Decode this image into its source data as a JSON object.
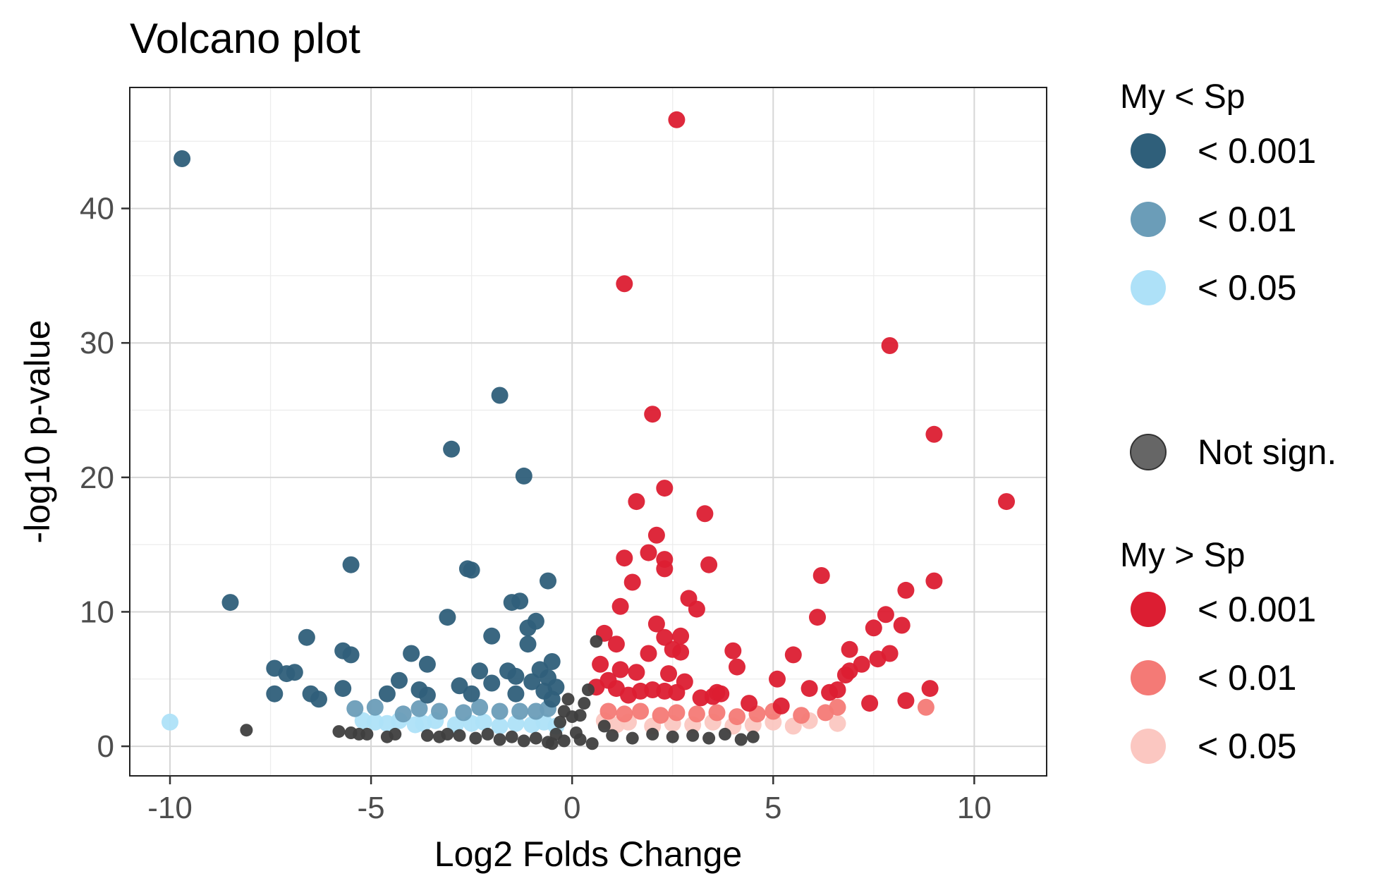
{
  "chart_data": {
    "type": "scatter",
    "title": "Volcano plot",
    "xlabel": "Log2 Folds Change",
    "ylabel": "-log10 p-value",
    "xlim": [
      -11,
      11.8
    ],
    "ylim": [
      -2.2,
      49
    ],
    "x_ticks": [
      -10,
      -5,
      0,
      5,
      10
    ],
    "y_ticks": [
      0,
      10,
      20,
      30,
      40
    ],
    "grid": true,
    "legend_position": "right",
    "colors": {
      "down_001": "#2f5f7a",
      "down_01": "#6b9db8",
      "down_05": "#aee1f8",
      "not_sign": "#3f3f3f",
      "up_001": "#dc1e32",
      "up_01": "#f47a76",
      "up_05": "#fbc7c1"
    },
    "legend": {
      "group1_title": "My < Sp",
      "group1_items": [
        {
          "label": "< 0.001",
          "color": "#2f5f7a"
        },
        {
          "label": "< 0.01",
          "color": "#6b9db8"
        },
        {
          "label": "< 0.05",
          "color": "#aee1f8"
        }
      ],
      "not_sign_label": "Not sign.",
      "group2_title": "My > Sp",
      "group2_items": [
        {
          "label": "< 0.001",
          "color": "#dc1e32"
        },
        {
          "label": "< 0.01",
          "color": "#f47a76"
        },
        {
          "label": "< 0.05",
          "color": "#fbc7c1"
        }
      ]
    },
    "series": [
      {
        "key": "down_001",
        "points": [
          [
            -9.7,
            43.7
          ],
          [
            -8.5,
            10.7
          ],
          [
            -7.4,
            5.8
          ],
          [
            -7.1,
            5.4
          ],
          [
            -6.9,
            5.5
          ],
          [
            -7.4,
            3.9
          ],
          [
            -6.6,
            8.1
          ],
          [
            -6.5,
            3.9
          ],
          [
            -6.3,
            3.5
          ],
          [
            -5.7,
            7.1
          ],
          [
            -5.5,
            6.8
          ],
          [
            -5.7,
            4.3
          ],
          [
            -5.5,
            13.5
          ],
          [
            -4.6,
            3.9
          ],
          [
            -4.3,
            4.9
          ],
          [
            -4.0,
            6.9
          ],
          [
            -3.8,
            4.2
          ],
          [
            -3.6,
            6.1
          ],
          [
            -3.6,
            3.8
          ],
          [
            -3.0,
            22.1
          ],
          [
            -3.1,
            9.6
          ],
          [
            -2.6,
            13.2
          ],
          [
            -2.5,
            13.1
          ],
          [
            -2.8,
            4.5
          ],
          [
            -2.5,
            3.9
          ],
          [
            -2.3,
            5.6
          ],
          [
            -2.0,
            8.2
          ],
          [
            -2.0,
            4.7
          ],
          [
            -1.8,
            26.1
          ],
          [
            -1.6,
            5.6
          ],
          [
            -1.4,
            5.2
          ],
          [
            -1.5,
            10.7
          ],
          [
            -1.3,
            10.8
          ],
          [
            -1.2,
            20.1
          ],
          [
            -1.1,
            8.8
          ],
          [
            -1.1,
            7.6
          ],
          [
            -0.9,
            9.3
          ],
          [
            -0.6,
            12.3
          ],
          [
            -1.0,
            4.8
          ],
          [
            -0.8,
            5.7
          ],
          [
            -0.6,
            5.1
          ],
          [
            -0.7,
            4.1
          ],
          [
            -0.5,
            6.3
          ],
          [
            -0.4,
            4.4
          ],
          [
            -0.5,
            3.5
          ],
          [
            -1.4,
            3.9
          ]
        ]
      },
      {
        "key": "down_01",
        "points": [
          [
            -5.4,
            2.8
          ],
          [
            -4.9,
            2.9
          ],
          [
            -4.2,
            2.4
          ],
          [
            -3.8,
            2.8
          ],
          [
            -3.3,
            2.6
          ],
          [
            -2.7,
            2.5
          ],
          [
            -2.3,
            2.9
          ],
          [
            -1.8,
            2.6
          ],
          [
            -1.3,
            2.6
          ],
          [
            -0.9,
            2.6
          ],
          [
            -0.6,
            2.8
          ]
        ]
      },
      {
        "key": "down_05",
        "points": [
          [
            -10.0,
            1.8
          ],
          [
            -5.2,
            1.9
          ],
          [
            -4.9,
            1.8
          ],
          [
            -4.6,
            1.7
          ],
          [
            -4.3,
            1.9
          ],
          [
            -3.9,
            1.6
          ],
          [
            -3.7,
            1.7
          ],
          [
            -3.4,
            1.9
          ],
          [
            -2.9,
            1.6
          ],
          [
            -2.5,
            1.7
          ],
          [
            -2.2,
            1.8
          ],
          [
            -1.8,
            1.5
          ],
          [
            -1.4,
            1.7
          ],
          [
            -1.0,
            1.6
          ],
          [
            -0.7,
            1.8
          ],
          [
            -0.4,
            1.5
          ]
        ]
      },
      {
        "key": "not_sign",
        "points": [
          [
            -8.1,
            1.2
          ],
          [
            -5.8,
            1.1
          ],
          [
            -5.5,
            1.0
          ],
          [
            -5.3,
            0.9
          ],
          [
            -5.1,
            0.9
          ],
          [
            -4.6,
            0.7
          ],
          [
            -4.4,
            0.9
          ],
          [
            -3.6,
            0.8
          ],
          [
            -3.3,
            0.7
          ],
          [
            -3.1,
            0.9
          ],
          [
            -2.8,
            0.8
          ],
          [
            -2.4,
            0.6
          ],
          [
            -2.1,
            0.9
          ],
          [
            -1.8,
            0.5
          ],
          [
            -1.5,
            0.7
          ],
          [
            -1.2,
            0.4
          ],
          [
            -0.9,
            0.6
          ],
          [
            -0.6,
            0.3
          ],
          [
            -0.4,
            0.9
          ],
          [
            -0.3,
            1.8
          ],
          [
            -0.2,
            2.6
          ],
          [
            -0.1,
            3.5
          ],
          [
            0.0,
            2.2
          ],
          [
            0.1,
            1.0
          ],
          [
            0.2,
            2.3
          ],
          [
            0.3,
            3.2
          ],
          [
            0.4,
            4.2
          ],
          [
            0.6,
            7.8
          ],
          [
            0.8,
            1.5
          ],
          [
            1.0,
            0.8
          ],
          [
            1.5,
            0.6
          ],
          [
            2.0,
            0.9
          ],
          [
            2.5,
            0.7
          ],
          [
            3.0,
            0.8
          ],
          [
            3.4,
            0.6
          ],
          [
            3.8,
            0.9
          ],
          [
            4.2,
            0.5
          ],
          [
            4.5,
            0.7
          ],
          [
            0.5,
            0.2
          ],
          [
            -0.5,
            0.2
          ],
          [
            0.2,
            0.5
          ],
          [
            -0.2,
            0.4
          ]
        ]
      },
      {
        "key": "up_001",
        "points": [
          [
            2.6,
            46.6
          ],
          [
            1.3,
            34.4
          ],
          [
            7.9,
            29.8
          ],
          [
            2.0,
            24.7
          ],
          [
            9.0,
            23.2
          ],
          [
            2.3,
            19.2
          ],
          [
            1.6,
            18.2
          ],
          [
            10.8,
            18.2
          ],
          [
            3.3,
            17.3
          ],
          [
            2.1,
            15.7
          ],
          [
            1.9,
            14.4
          ],
          [
            1.3,
            14.0
          ],
          [
            2.3,
            13.9
          ],
          [
            2.3,
            13.2
          ],
          [
            3.4,
            13.5
          ],
          [
            6.2,
            12.7
          ],
          [
            1.5,
            12.2
          ],
          [
            9.0,
            12.3
          ],
          [
            8.3,
            11.6
          ],
          [
            2.9,
            11.0
          ],
          [
            3.1,
            10.2
          ],
          [
            1.2,
            10.4
          ],
          [
            7.8,
            9.8
          ],
          [
            6.1,
            9.6
          ],
          [
            2.1,
            9.1
          ],
          [
            7.5,
            8.8
          ],
          [
            8.2,
            9.0
          ],
          [
            0.8,
            8.4
          ],
          [
            2.3,
            8.1
          ],
          [
            2.7,
            8.2
          ],
          [
            1.1,
            7.6
          ],
          [
            1.9,
            6.9
          ],
          [
            2.5,
            7.2
          ],
          [
            2.7,
            7.0
          ],
          [
            4.0,
            7.1
          ],
          [
            5.5,
            6.8
          ],
          [
            6.9,
            7.2
          ],
          [
            7.9,
            6.9
          ],
          [
            7.6,
            6.5
          ],
          [
            7.2,
            6.1
          ],
          [
            0.7,
            6.1
          ],
          [
            1.2,
            5.7
          ],
          [
            1.6,
            5.5
          ],
          [
            2.4,
            5.4
          ],
          [
            4.1,
            5.9
          ],
          [
            5.1,
            5.0
          ],
          [
            6.8,
            5.3
          ],
          [
            2.8,
            4.8
          ],
          [
            3.6,
            4.0
          ],
          [
            3.2,
            3.6
          ],
          [
            4.4,
            3.2
          ],
          [
            5.2,
            3.0
          ],
          [
            5.9,
            4.3
          ],
          [
            6.4,
            4.0
          ],
          [
            6.6,
            4.2
          ],
          [
            6.9,
            5.6
          ],
          [
            7.4,
            3.2
          ],
          [
            8.3,
            3.4
          ],
          [
            8.9,
            4.3
          ],
          [
            2.0,
            4.2
          ],
          [
            2.3,
            4.1
          ],
          [
            2.6,
            4.0
          ],
          [
            3.5,
            3.7
          ],
          [
            3.7,
            3.9
          ],
          [
            1.4,
            3.8
          ],
          [
            1.1,
            4.3
          ],
          [
            0.9,
            4.9
          ],
          [
            0.6,
            4.4
          ],
          [
            1.7,
            4.1
          ]
        ]
      },
      {
        "key": "up_01",
        "points": [
          [
            0.9,
            2.6
          ],
          [
            1.3,
            2.4
          ],
          [
            1.7,
            2.6
          ],
          [
            2.2,
            2.3
          ],
          [
            2.6,
            2.5
          ],
          [
            3.1,
            2.4
          ],
          [
            3.6,
            2.5
          ],
          [
            4.1,
            2.2
          ],
          [
            4.6,
            2.4
          ],
          [
            5.0,
            2.6
          ],
          [
            5.7,
            2.3
          ],
          [
            6.3,
            2.5
          ],
          [
            6.6,
            2.9
          ],
          [
            8.8,
            2.9
          ]
        ]
      },
      {
        "key": "up_05",
        "points": [
          [
            0.8,
            1.9
          ],
          [
            1.1,
            1.6
          ],
          [
            1.4,
            1.8
          ],
          [
            2.0,
            1.5
          ],
          [
            2.5,
            1.7
          ],
          [
            3.0,
            1.6
          ],
          [
            3.5,
            1.8
          ],
          [
            4.0,
            1.5
          ],
          [
            4.5,
            1.6
          ],
          [
            5.0,
            1.8
          ],
          [
            5.5,
            1.5
          ],
          [
            6.6,
            1.7
          ],
          [
            5.9,
            1.9
          ]
        ]
      }
    ]
  }
}
